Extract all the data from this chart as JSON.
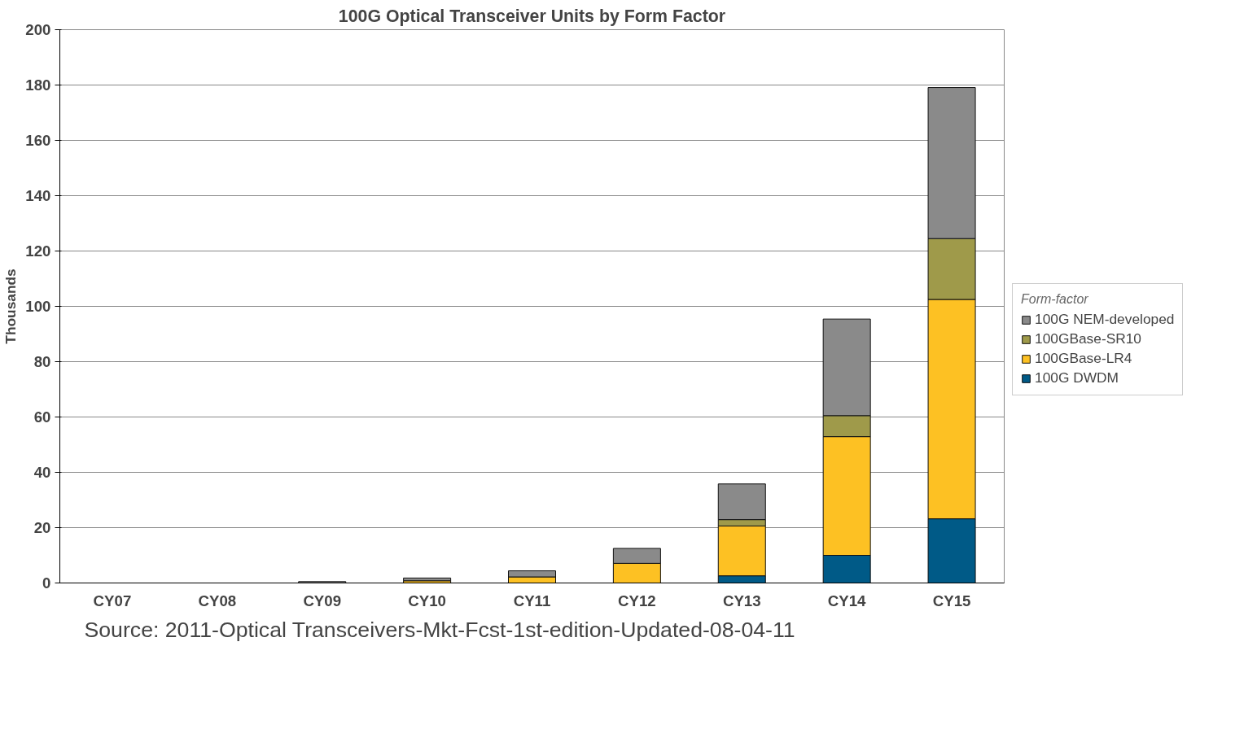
{
  "chart_data": {
    "type": "bar",
    "stacked": true,
    "title": "100G Optical Transceiver Units by Form Factor",
    "ylabel": "Thousands",
    "categories": [
      "CY07",
      "CY08",
      "CY09",
      "CY10",
      "CY11",
      "CY12",
      "CY13",
      "CY14",
      "CY15"
    ],
    "series": [
      {
        "name": "100G DWDM",
        "color": "#005a87",
        "values": [
          0,
          0,
          0,
          0,
          0,
          null,
          2.6,
          10,
          23.2
        ]
      },
      {
        "name": "100GBase-LR4",
        "color": "#fdc123",
        "values": [
          0,
          0,
          0,
          0.8,
          2.2,
          7.1,
          18,
          42.9,
          79.3
        ]
      },
      {
        "name": "100GBase-SR10",
        "color": "#9f9a4a",
        "values": [
          0,
          0,
          0,
          0,
          null,
          0,
          2.3,
          7.6,
          22
        ]
      },
      {
        "name": "100G NEM-developed",
        "color": "#8a8a8a",
        "values": [
          0,
          0,
          0.5,
          1,
          2.2,
          5.4,
          12.9,
          34.9,
          54.6
        ]
      }
    ],
    "ylim": [
      0,
      200
    ],
    "yticks": [
      0,
      20,
      40,
      60,
      80,
      100,
      120,
      140,
      160,
      180,
      200
    ],
    "grid": "y",
    "legend": "right",
    "legend_title": "Form-factor",
    "annotations": [
      "Source:  2011-Optical Transceivers-Mkt-Fcst-1st-edition-Updated-08-04-11"
    ]
  }
}
